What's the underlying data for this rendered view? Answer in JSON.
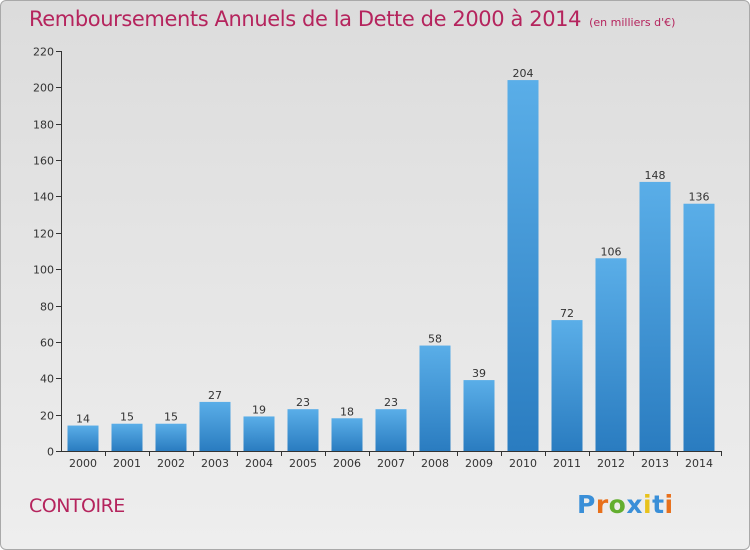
{
  "title": "Remboursements Annuels de la Dette de 2000 à 2014",
  "unit": "(en milliers d'€)",
  "commune": "CONTOIRE",
  "logo": {
    "letters": [
      "P",
      "r",
      "o",
      "x",
      "i",
      "t",
      "i"
    ],
    "colors": [
      "#3a8fd8",
      "#e8701b",
      "#63ae2f",
      "#3a8fd8",
      "#e8c21b",
      "#3a8fd8",
      "#e8701b"
    ]
  },
  "colors": {
    "title": "#b5245d",
    "bar_top": "#5aaee8",
    "bar_bottom": "#2a7cc0",
    "axis": "#333333",
    "background_top": "#dcdcdc",
    "background_bottom": "#eeeeee"
  },
  "chart_data": {
    "type": "bar",
    "categories": [
      "2000",
      "2001",
      "2002",
      "2003",
      "2004",
      "2005",
      "2006",
      "2007",
      "2008",
      "2009",
      "2010",
      "2011",
      "2012",
      "2013",
      "2014"
    ],
    "values": [
      14,
      15,
      15,
      27,
      19,
      23,
      18,
      23,
      58,
      39,
      204,
      72,
      106,
      148,
      136
    ],
    "ylim": [
      0,
      220
    ],
    "yticks": [
      0,
      20,
      40,
      60,
      80,
      100,
      120,
      140,
      160,
      180,
      200,
      220
    ],
    "grid": false,
    "legend": "none"
  }
}
